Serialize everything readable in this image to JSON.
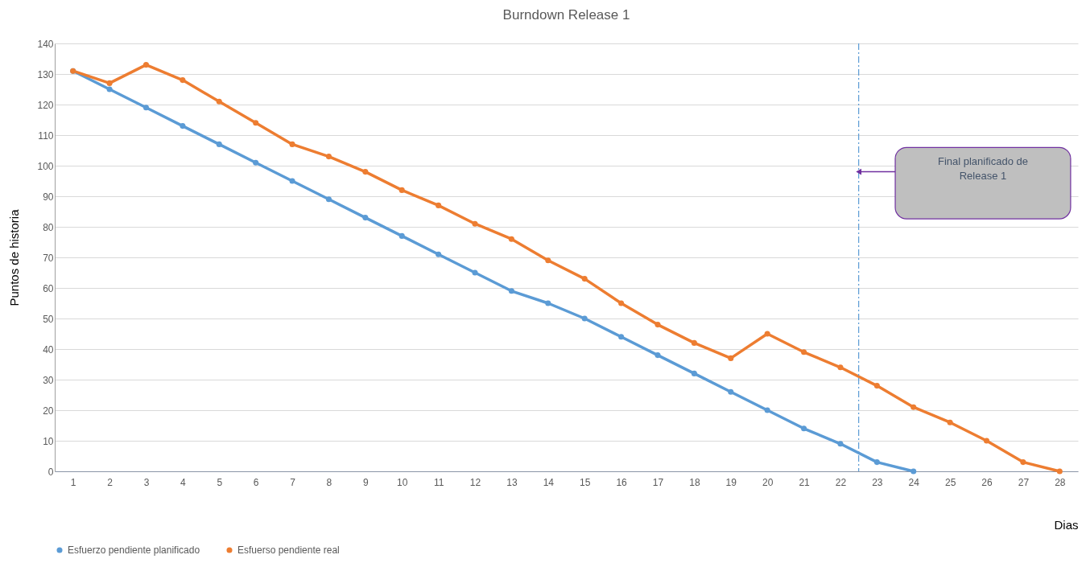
{
  "chart_data": {
    "type": "line",
    "title": "Burndown Release 1",
    "xlabel": "Dias",
    "ylabel": "Puntos de historia",
    "x": [
      1,
      2,
      3,
      4,
      5,
      6,
      7,
      8,
      9,
      10,
      11,
      12,
      13,
      14,
      15,
      16,
      17,
      18,
      19,
      20,
      21,
      22,
      23,
      24,
      25,
      26,
      27,
      28
    ],
    "series": [
      {
        "name": "Esfuerzo pendiente planificado",
        "color": "#5b9bd5",
        "values": [
          131,
          125,
          119,
          113,
          107,
          101,
          95,
          89,
          83,
          77,
          71,
          65,
          59,
          55,
          50,
          44,
          38,
          32,
          26,
          20,
          14,
          9,
          3,
          0,
          null,
          null,
          null,
          null
        ]
      },
      {
        "name": "Esfuerso pendiente real",
        "color": "#ed7d31",
        "values": [
          131,
          127,
          133,
          128,
          121,
          114,
          107,
          103,
          98,
          92,
          87,
          81,
          76,
          69,
          63,
          55,
          48,
          42,
          37,
          45,
          39,
          34,
          28,
          21,
          16,
          10,
          3,
          0
        ]
      }
    ],
    "xlim": [
      0.5,
      28.5
    ],
    "xticks": [
      1,
      2,
      3,
      4,
      5,
      6,
      7,
      8,
      9,
      10,
      11,
      12,
      13,
      14,
      15,
      16,
      17,
      18,
      19,
      20,
      21,
      22,
      23,
      24,
      25,
      26,
      27,
      28
    ],
    "ylim": [
      0,
      140
    ],
    "yticks": [
      0,
      10,
      20,
      30,
      40,
      50,
      60,
      70,
      80,
      90,
      100,
      110,
      120,
      130,
      140
    ],
    "grid": "y",
    "legend": "bottom",
    "marker": "circle",
    "line_style": "solid",
    "ref_lines": [
      {
        "axis": "x",
        "value": 22.5,
        "color": "#5b9bd5",
        "line_style": "dashdot"
      }
    ],
    "annotations": [
      "Final planificado de Release 1"
    ]
  }
}
